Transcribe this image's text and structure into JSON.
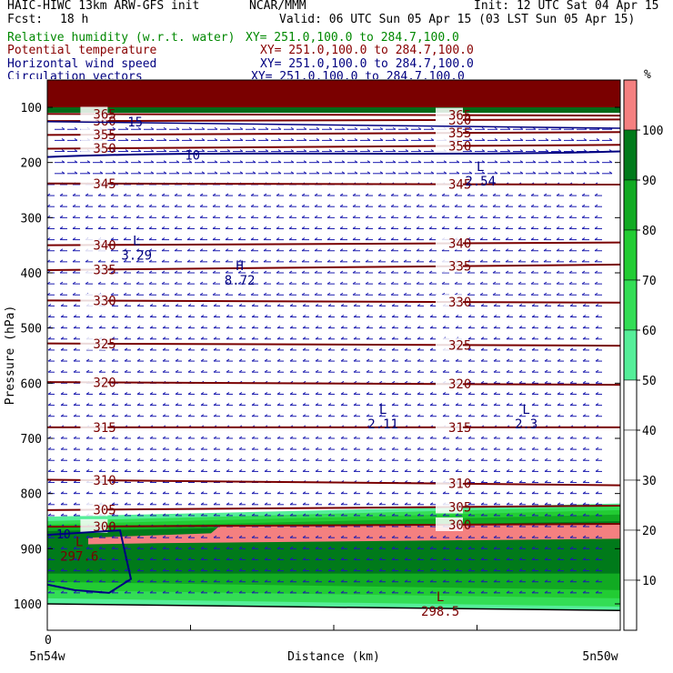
{
  "header": {
    "model": "HAIC-HIWC 13km ARW-GFS init",
    "center": "NCAR/MMM",
    "init": "Init: 12 UTC Sat 04 Apr 15",
    "fcst_label": "Fcst:",
    "fcst_value": "18 h",
    "valid": "Valid: 06 UTC Sun 05 Apr 15 (03 LST Sun 05 Apr 15)",
    "fields": [
      {
        "name": "Relative humidity (w.r.t. water)",
        "xy": "XY= 251.0,100.0 to 284.7,100.0",
        "color": "#008800"
      },
      {
        "name": "Potential temperature",
        "xy": "XY= 251.0,100.0 to 284.7,100.0",
        "color": "#880000"
      },
      {
        "name": "Horizontal wind speed",
        "xy": "XY= 251.0,100.0 to 284.7,100.0",
        "color": "#000080"
      },
      {
        "name": "Circulation vectors",
        "xy": "XY= 251.0,100.0 to 284.7,100.0",
        "color": "#000080"
      }
    ]
  },
  "chart_data": {
    "type": "cross-section",
    "ylabel": "Pressure (hPa)",
    "xlabel": "Distance (km)",
    "x_tick_labels": {
      "left": "5n54w",
      "right": "5n50w",
      "origin": "0"
    },
    "yticks": [
      100,
      200,
      300,
      400,
      500,
      600,
      700,
      800,
      900,
      1000
    ],
    "ylim": [
      1055,
      75
    ],
    "y_scale": "linear-pressure-reversed",
    "x_ticks_count": 5,
    "colorbar": {
      "unit": "%",
      "levels": [
        10,
        20,
        30,
        40,
        50,
        60,
        70,
        80,
        90,
        100
      ],
      "colors": {
        "50-60": "#55ee99",
        "60-70": "#33dd55",
        "70-80": "#22cc33",
        "80-90": "#11aa22",
        "90-100": "#007a1a",
        ">100": "#f48080"
      }
    },
    "theta_contours": [
      {
        "value": 300,
        "label": "300",
        "p_left": 860,
        "p_right": 855
      },
      {
        "value": 305,
        "label": "305",
        "p_left": 830,
        "p_right": 822
      },
      {
        "value": 310,
        "label": "310",
        "p_left": 775,
        "p_right": 785
      },
      {
        "value": 315,
        "label": "315",
        "p_left": 680,
        "p_right": 680
      },
      {
        "value": 320,
        "label": "320",
        "p_left": 598,
        "p_right": 603
      },
      {
        "value": 325,
        "label": "325",
        "p_left": 528,
        "p_right": 532
      },
      {
        "value": 330,
        "label": "330",
        "p_left": 450,
        "p_right": 454
      },
      {
        "value": 335,
        "label": "335",
        "p_left": 395,
        "p_right": 385
      },
      {
        "value": 340,
        "label": "340",
        "p_left": 350,
        "p_right": 345
      },
      {
        "value": 345,
        "label": "345",
        "p_left": 238,
        "p_right": 240
      },
      {
        "value": 350,
        "label": "350",
        "p_left": 175,
        "p_right": 168
      },
      {
        "value": 355,
        "label": "355",
        "p_left": 150,
        "p_right": 145
      },
      {
        "value": 360,
        "label": "360",
        "p_left": 125,
        "p_right": 122
      },
      {
        "value": 365,
        "label": "365",
        "p_left": 112,
        "p_right": 115
      }
    ],
    "wind_contours": [
      {
        "label": "10",
        "p_left": 190,
        "p_right": 180
      },
      {
        "label": "15",
        "p_left": 126,
        "p_right": 138
      },
      {
        "label": "10",
        "p_left": 875
      }
    ],
    "extrema": [
      {
        "type": "L",
        "value": "2.54",
        "x": 0.74,
        "p": 225
      },
      {
        "type": "L",
        "value": "3.29",
        "x": 0.14,
        "p": 360
      },
      {
        "type": "H",
        "value": "8.72",
        "x": 0.32,
        "p": 405
      },
      {
        "type": "L",
        "value": "2.11",
        "x": 0.57,
        "p": 665
      },
      {
        "type": "L",
        "value": "2.3",
        "x": 0.82,
        "p": 665
      },
      {
        "type": "L",
        "value": "297.6",
        "x": 0.04,
        "p": 905
      },
      {
        "type": "L",
        "value": "298.5",
        "x": 0.67,
        "p": 1005
      }
    ],
    "surface_pressure": {
      "left": 1000,
      "right": 1012
    },
    "top_saturated_layer": [
      75,
      100
    ]
  }
}
